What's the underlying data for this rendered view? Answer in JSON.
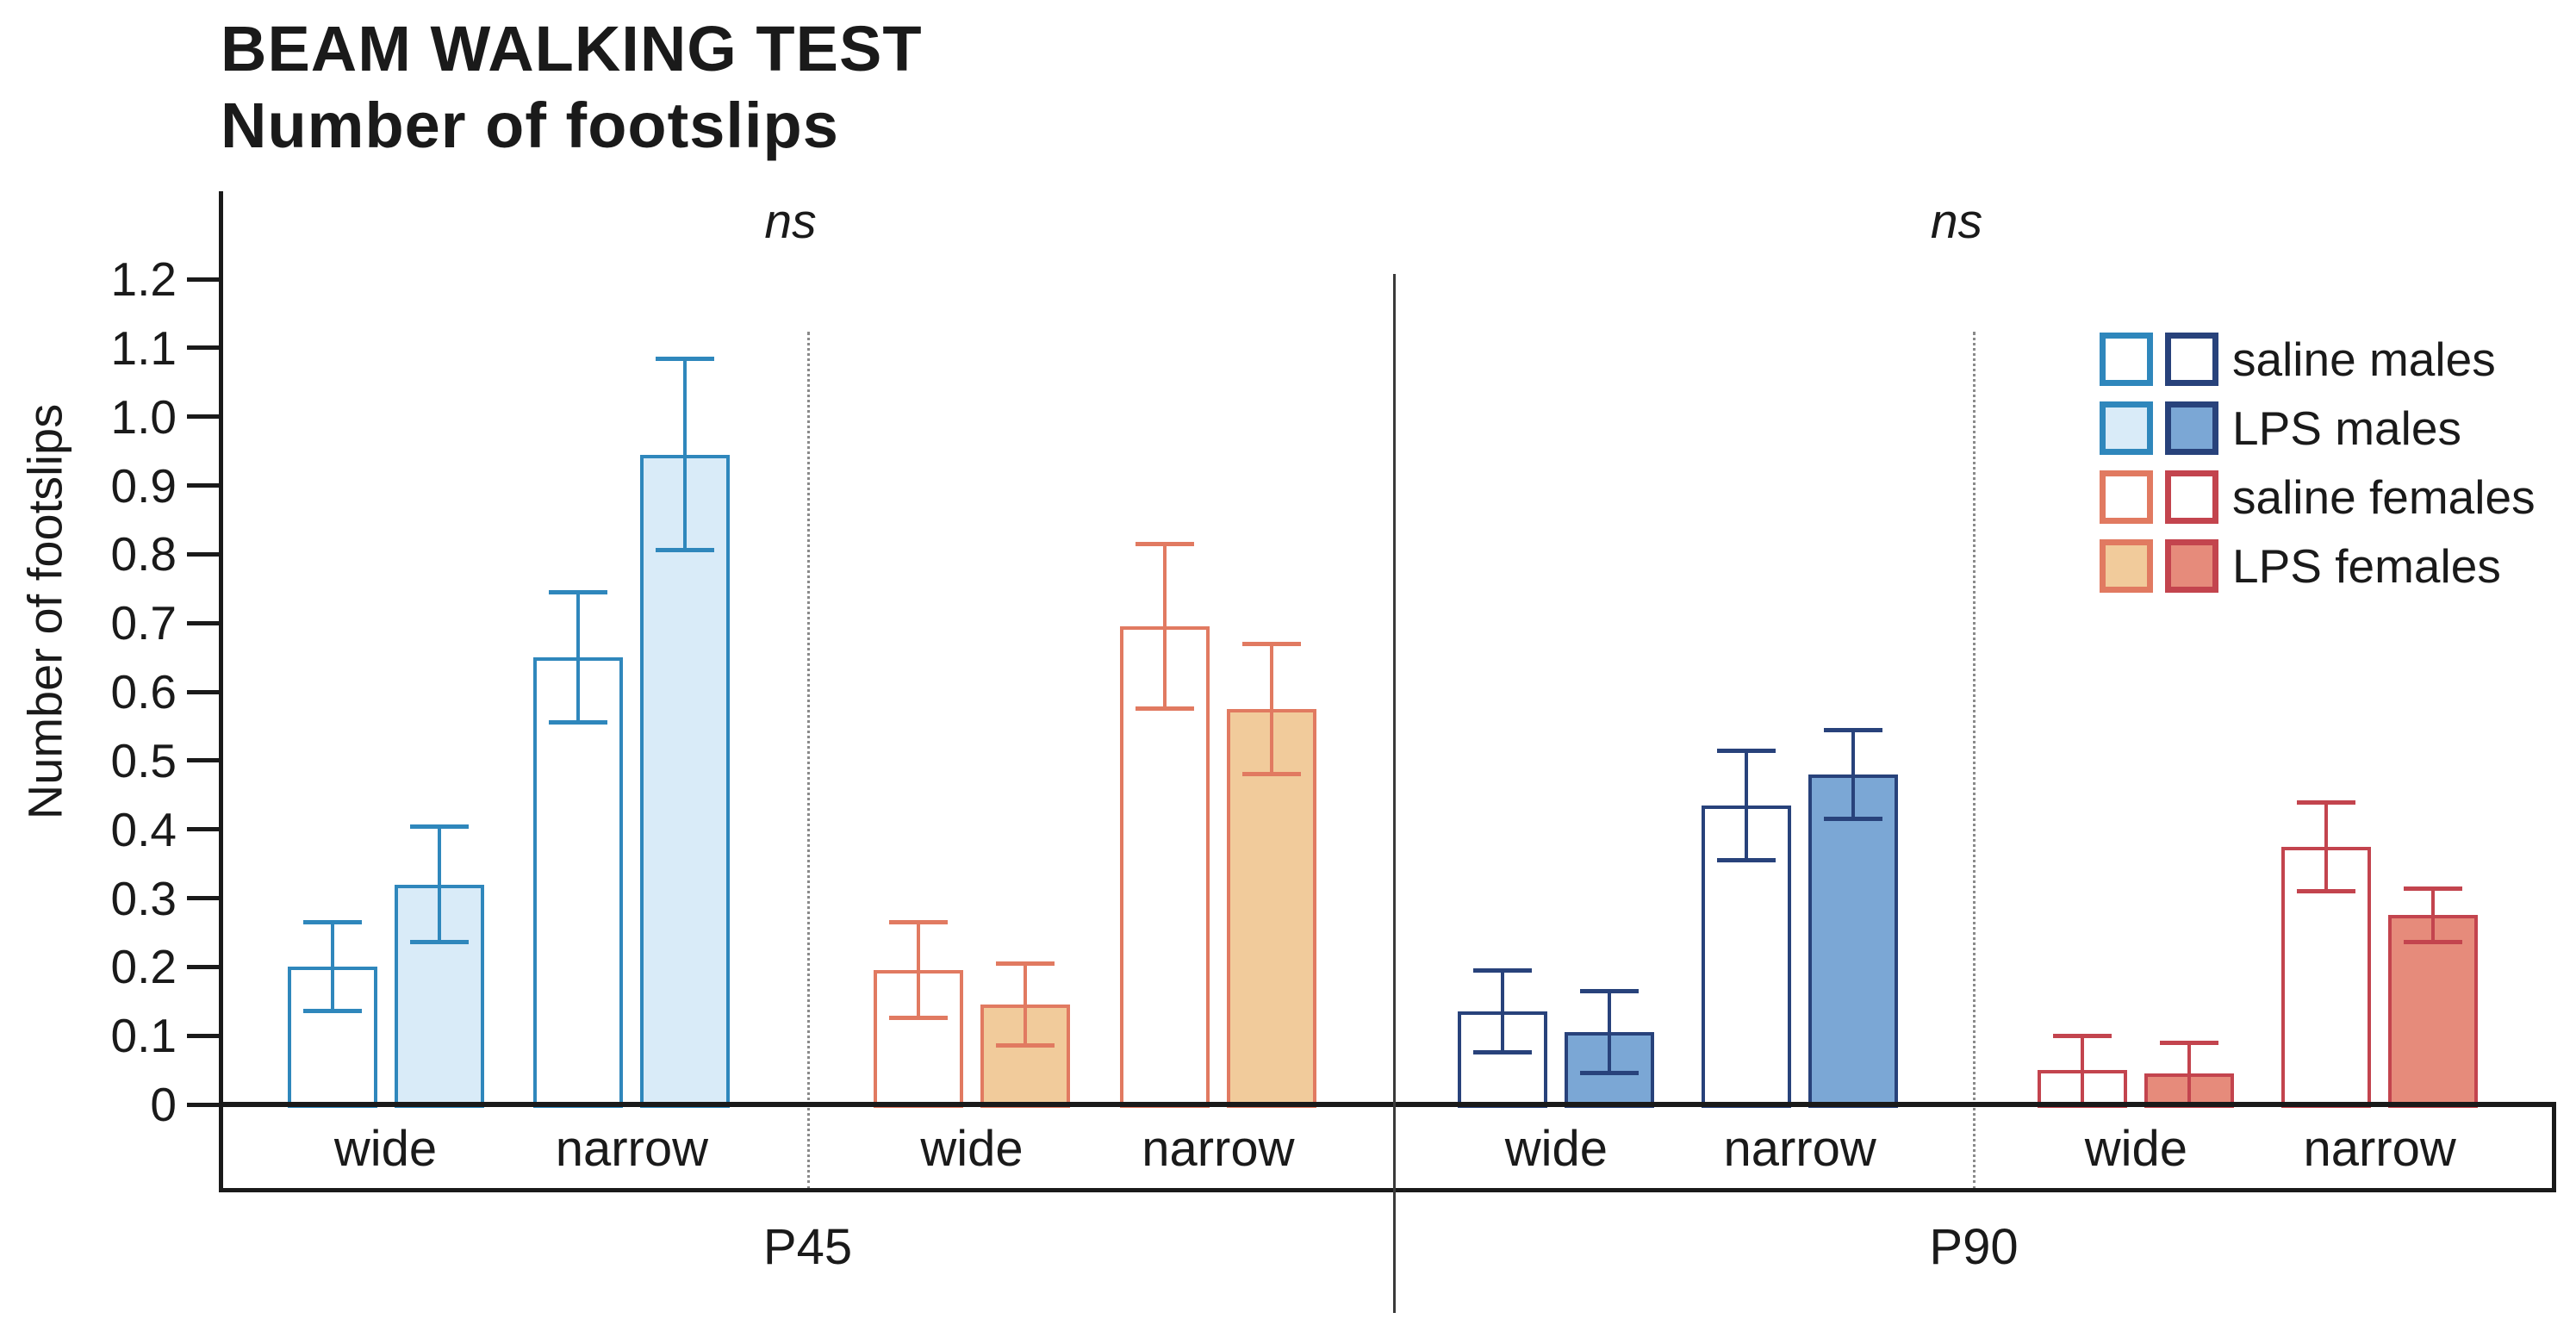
{
  "chart_data": {
    "type": "bar",
    "title_line1": "BEAM WALKING TEST",
    "title_line2": "Number of footslips",
    "ylabel": "Number of footslips",
    "ylim": [
      0,
      1.2
    ],
    "yticks": [
      "0",
      "0.1",
      "0.2",
      "0.3",
      "0.4",
      "0.5",
      "0.6",
      "0.7",
      "0.8",
      "0.9",
      "1.0",
      "1.1",
      "1.2"
    ],
    "categories": [
      "wide",
      "narrow"
    ],
    "grid": "off",
    "legend_position": "top-right",
    "colors": {
      "males_p45": {
        "border": "#2F87BC",
        "fill": "#D9EBF8"
      },
      "males_p90": {
        "border": "#28427B",
        "fill": "#7BA7D5"
      },
      "females_p45": {
        "border": "#E17A61",
        "fill": "#F1CB9B"
      },
      "females_p90": {
        "border": "#C3444E",
        "fill": "#E68B7B"
      },
      "axis": "#1a1a1a",
      "separator_solid": "#3a3a3a",
      "separator_dotted": "#8a8a8a",
      "text": "#1a1a1a"
    },
    "panels": [
      {
        "label": "P45",
        "annotation": "ns",
        "groups": [
          {
            "sex": "males",
            "color_key": "males_p45",
            "pairs": [
              {
                "category": "wide",
                "bars": [
                  {
                    "name": "saline",
                    "value": 0.2,
                    "error": 0.065,
                    "filled": false
                  },
                  {
                    "name": "LPS",
                    "value": 0.32,
                    "error": 0.085,
                    "filled": true
                  }
                ]
              },
              {
                "category": "narrow",
                "bars": [
                  {
                    "name": "saline",
                    "value": 0.65,
                    "error": 0.095,
                    "filled": false
                  },
                  {
                    "name": "LPS",
                    "value": 0.945,
                    "error": 0.14,
                    "filled": true
                  }
                ]
              }
            ]
          },
          {
            "sex": "females",
            "color_key": "females_p45",
            "pairs": [
              {
                "category": "wide",
                "bars": [
                  {
                    "name": "saline",
                    "value": 0.195,
                    "error": 0.07,
                    "filled": false
                  },
                  {
                    "name": "LPS",
                    "value": 0.145,
                    "error": 0.06,
                    "filled": true
                  }
                ]
              },
              {
                "category": "narrow",
                "bars": [
                  {
                    "name": "saline",
                    "value": 0.695,
                    "error": 0.12,
                    "filled": false
                  },
                  {
                    "name": "LPS",
                    "value": 0.575,
                    "error": 0.095,
                    "filled": true
                  }
                ]
              }
            ]
          }
        ]
      },
      {
        "label": "P90",
        "annotation": "ns",
        "groups": [
          {
            "sex": "males",
            "color_key": "males_p90",
            "pairs": [
              {
                "category": "wide",
                "bars": [
                  {
                    "name": "saline",
                    "value": 0.135,
                    "error": 0.06,
                    "filled": false
                  },
                  {
                    "name": "LPS",
                    "value": 0.105,
                    "error": 0.06,
                    "filled": true
                  }
                ]
              },
              {
                "category": "narrow",
                "bars": [
                  {
                    "name": "saline",
                    "value": 0.435,
                    "error": 0.08,
                    "filled": false
                  },
                  {
                    "name": "LPS",
                    "value": 0.48,
                    "error": 0.065,
                    "filled": true
                  }
                ]
              }
            ]
          },
          {
            "sex": "females",
            "color_key": "females_p90",
            "pairs": [
              {
                "category": "wide",
                "bars": [
                  {
                    "name": "saline",
                    "value": 0.05,
                    "error": 0.05,
                    "filled": false
                  },
                  {
                    "name": "LPS",
                    "value": 0.045,
                    "error": 0.045,
                    "filled": true
                  }
                ]
              },
              {
                "category": "narrow",
                "bars": [
                  {
                    "name": "saline",
                    "value": 0.375,
                    "error": 0.065,
                    "filled": false
                  },
                  {
                    "name": "LPS",
                    "value": 0.275,
                    "error": 0.04,
                    "filled": true
                  }
                ]
              }
            ]
          }
        ]
      }
    ],
    "legend": [
      {
        "label": "saline males",
        "filled": false,
        "swatch_keys": [
          "males_p45",
          "males_p90"
        ]
      },
      {
        "label": "LPS males",
        "filled": true,
        "swatch_keys": [
          "males_p45",
          "males_p90"
        ]
      },
      {
        "label": "saline females",
        "filled": false,
        "swatch_keys": [
          "females_p45",
          "females_p90"
        ]
      },
      {
        "label": "LPS females",
        "filled": true,
        "swatch_keys": [
          "females_p45",
          "females_p90"
        ]
      }
    ]
  }
}
